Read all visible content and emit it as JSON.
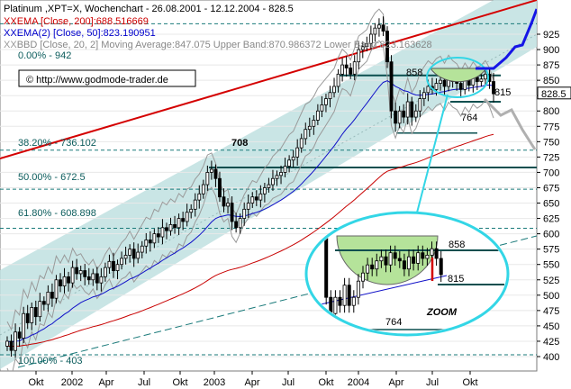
{
  "chart_data": {
    "type": "candlestick",
    "title": "Platinum ,XPT=X, Wochenchart - 26.08.2001 - 12.12.2004 - 828.5",
    "legend": [
      {
        "text": "EMA [Close, 200]:688.516669",
        "color": "#cc0000",
        "marker": "XX"
      },
      {
        "text": "EMA(2) [Close, 50]:823.190951",
        "color": "#0000cc",
        "marker": "XX"
      },
      {
        "text": "BBD [Close, 20, 2] Moving Average:847.075 Upper Band:870.986372 Lower Band:823.163628",
        "color": "#999999",
        "marker": "XX"
      }
    ],
    "watermark": "© http://www.godmode-trader.de",
    "x_ticks": [
      "Okt",
      "2002",
      "Apr",
      "Jul",
      "Okt",
      "2003",
      "Apr",
      "Jul",
      "Okt",
      "2004",
      "Apr",
      "Jul",
      "Okt"
    ],
    "y_ticks": [
      400,
      425,
      450,
      475,
      500,
      525,
      550,
      575,
      600,
      625,
      650,
      675,
      700,
      725,
      750,
      775,
      800,
      825,
      850,
      875,
      900,
      925
    ],
    "ylim": [
      395,
      950
    ],
    "last_price": 828.5,
    "fibonacci": [
      {
        "label": "0.00% - 942",
        "value": 942
      },
      {
        "label": "38.20% - 736.102",
        "value": 736.102
      },
      {
        "label": "50.00% - 672.5",
        "value": 672.5
      },
      {
        "label": "61.80% - 608.898",
        "value": 608.898
      },
      {
        "label": "100.00% - 403",
        "value": 403
      }
    ],
    "levels": [
      {
        "label": "858",
        "value": 858
      },
      {
        "label": "815",
        "value": 815
      },
      {
        "label": "764",
        "value": 764
      },
      {
        "label": "708",
        "value": 708
      }
    ],
    "zoom_label": "ZOOM",
    "zoom_levels": [
      "858",
      "815",
      "764"
    ],
    "weekly_closes": [
      425,
      410,
      440,
      430,
      470,
      455,
      480,
      465,
      490,
      485,
      505,
      495,
      525,
      515,
      530,
      520,
      545,
      535,
      540,
      530,
      525,
      535,
      520,
      530,
      545,
      555,
      540,
      550,
      560,
      565,
      575,
      560,
      570,
      580,
      590,
      585,
      600,
      595,
      610,
      605,
      615,
      610,
      625,
      620,
      635,
      640,
      655,
      665,
      680,
      700,
      705,
      690,
      660,
      645,
      650,
      620,
      610,
      625,
      640,
      650,
      660,
      655,
      665,
      675,
      680,
      690,
      695,
      700,
      710,
      720,
      725,
      740,
      755,
      770,
      775,
      785,
      800,
      810,
      820,
      830,
      840,
      860,
      875,
      870,
      860,
      880,
      900,
      905,
      910,
      925,
      935,
      940,
      930,
      880,
      800,
      780,
      800,
      790,
      815,
      790,
      800,
      820,
      830,
      840,
      835,
      845,
      850,
      840,
      855,
      848,
      845,
      835,
      850,
      842,
      855,
      848,
      852,
      860,
      848,
      828
    ]
  }
}
